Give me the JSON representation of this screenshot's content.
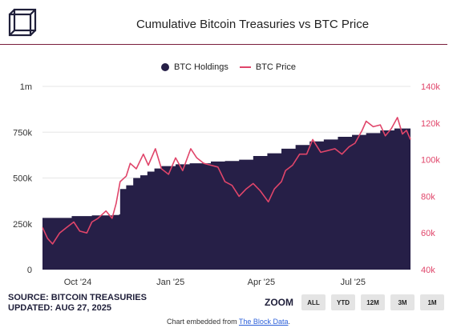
{
  "header": {
    "title": "Cumulative Bitcoin Treasuries vs BTC Price",
    "logo_icon": "cube-logo-icon"
  },
  "legend": {
    "holdings_label": "BTC Holdings",
    "price_label": "BTC Price"
  },
  "colors": {
    "holdings": "#261f47",
    "price": "#e0456a",
    "accent_rule": "#7a1d3c"
  },
  "source": {
    "line1": "SOURCE: BITCOIN TREASURIES",
    "line2": "UPDATED: AUG 27, 2025"
  },
  "zoom": {
    "label": "ZOOM",
    "buttons": [
      "ALL",
      "YTD",
      "12M",
      "3M",
      "1M"
    ]
  },
  "footer": {
    "prefix": "Chart embedded from ",
    "link_text": "The Block Data",
    "suffix": "."
  },
  "chart_data": {
    "type": "area",
    "title": "Cumulative Bitcoin Treasuries vs BTC Price",
    "x_range": [
      "2024-08-27",
      "2025-08-27"
    ],
    "x_ticks": [
      "Oct '24",
      "Jan '25",
      "Apr '25",
      "Jul '25"
    ],
    "y_left": {
      "ticks": [
        "0",
        "250k",
        "500k",
        "750k",
        "1m"
      ],
      "range": [
        0,
        1000000
      ]
    },
    "y_right": {
      "ticks": [
        "40k",
        "60k",
        "80k",
        "100k",
        "120k",
        "140k"
      ],
      "range": [
        40000,
        140000
      ]
    },
    "legend_position": "top-center",
    "grid": true,
    "series": [
      {
        "name": "BTC Holdings",
        "axis": "left",
        "type": "area",
        "points": [
          [
            "2024-08-27",
            282000
          ],
          [
            "2024-09-15",
            282000
          ],
          [
            "2024-09-25",
            292000
          ],
          [
            "2024-10-15",
            296000
          ],
          [
            "2024-11-05",
            298000
          ],
          [
            "2024-11-11",
            302000
          ],
          [
            "2024-11-12",
            440000
          ],
          [
            "2024-11-18",
            460000
          ],
          [
            "2024-11-25",
            500000
          ],
          [
            "2024-12-02",
            515000
          ],
          [
            "2024-12-09",
            535000
          ],
          [
            "2024-12-16",
            552000
          ],
          [
            "2024-12-23",
            565000
          ],
          [
            "2025-01-06",
            575000
          ],
          [
            "2025-01-20",
            580000
          ],
          [
            "2025-02-10",
            590000
          ],
          [
            "2025-02-24",
            593000
          ],
          [
            "2025-03-10",
            600000
          ],
          [
            "2025-03-24",
            620000
          ],
          [
            "2025-04-07",
            635000
          ],
          [
            "2025-04-21",
            660000
          ],
          [
            "2025-05-05",
            680000
          ],
          [
            "2025-05-19",
            700000
          ],
          [
            "2025-06-02",
            710000
          ],
          [
            "2025-06-16",
            725000
          ],
          [
            "2025-06-30",
            735000
          ],
          [
            "2025-07-14",
            745000
          ],
          [
            "2025-07-28",
            760000
          ],
          [
            "2025-08-11",
            770000
          ],
          [
            "2025-08-27",
            780000
          ]
        ]
      },
      {
        "name": "BTC Price",
        "axis": "right",
        "type": "line",
        "points": [
          [
            "2024-08-27",
            63000
          ],
          [
            "2024-09-01",
            57000
          ],
          [
            "2024-09-06",
            54000
          ],
          [
            "2024-09-13",
            60000
          ],
          [
            "2024-09-20",
            63000
          ],
          [
            "2024-09-27",
            66000
          ],
          [
            "2024-10-03",
            61000
          ],
          [
            "2024-10-10",
            60000
          ],
          [
            "2024-10-15",
            66000
          ],
          [
            "2024-10-21",
            68000
          ],
          [
            "2024-10-29",
            72000
          ],
          [
            "2024-11-04",
            68000
          ],
          [
            "2024-11-08",
            76000
          ],
          [
            "2024-11-12",
            88000
          ],
          [
            "2024-11-18",
            91000
          ],
          [
            "2024-11-22",
            98000
          ],
          [
            "2024-11-28",
            95000
          ],
          [
            "2024-12-05",
            103000
          ],
          [
            "2024-12-10",
            97000
          ],
          [
            "2024-12-17",
            106000
          ],
          [
            "2024-12-23",
            95000
          ],
          [
            "2024-12-30",
            92000
          ],
          [
            "2025-01-06",
            101000
          ],
          [
            "2025-01-13",
            94000
          ],
          [
            "2025-01-21",
            106000
          ],
          [
            "2025-01-27",
            101000
          ],
          [
            "2025-02-03",
            98000
          ],
          [
            "2025-02-10",
            97000
          ],
          [
            "2025-02-17",
            96000
          ],
          [
            "2025-02-24",
            88000
          ],
          [
            "2025-03-03",
            86000
          ],
          [
            "2025-03-10",
            80000
          ],
          [
            "2025-03-17",
            84000
          ],
          [
            "2025-03-24",
            87000
          ],
          [
            "2025-03-31",
            83000
          ],
          [
            "2025-04-08",
            77000
          ],
          [
            "2025-04-14",
            84000
          ],
          [
            "2025-04-21",
            88000
          ],
          [
            "2025-04-25",
            94000
          ],
          [
            "2025-05-02",
            97000
          ],
          [
            "2025-05-09",
            103000
          ],
          [
            "2025-05-16",
            103000
          ],
          [
            "2025-05-22",
            111000
          ],
          [
            "2025-05-30",
            104000
          ],
          [
            "2025-06-06",
            105000
          ],
          [
            "2025-06-13",
            106000
          ],
          [
            "2025-06-20",
            103000
          ],
          [
            "2025-06-27",
            107000
          ],
          [
            "2025-07-03",
            109000
          ],
          [
            "2025-07-10",
            116000
          ],
          [
            "2025-07-14",
            121000
          ],
          [
            "2025-07-21",
            118000
          ],
          [
            "2025-07-28",
            119000
          ],
          [
            "2025-08-02",
            113000
          ],
          [
            "2025-08-08",
            117000
          ],
          [
            "2025-08-14",
            123000
          ],
          [
            "2025-08-19",
            114000
          ],
          [
            "2025-08-23",
            116000
          ],
          [
            "2025-08-27",
            111000
          ]
        ]
      }
    ]
  }
}
